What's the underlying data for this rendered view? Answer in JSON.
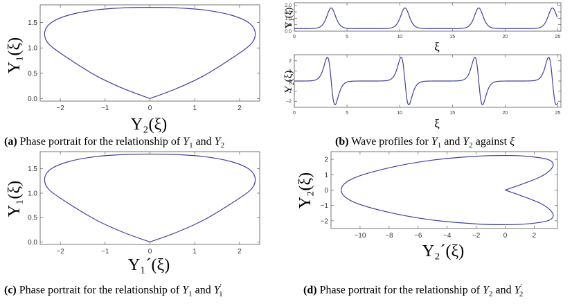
{
  "chart_data": [
    {
      "id": "a",
      "type": "line",
      "title": "",
      "xlabel": "Y₂(ξ)",
      "ylabel": "Y₁(ξ)",
      "xlim": [
        -2.45,
        2.45
      ],
      "ylim": [
        -0.05,
        1.85
      ],
      "xticks": [
        -2,
        -1,
        0,
        1,
        2
      ],
      "yticks": [
        0.0,
        0.5,
        1.0,
        1.5
      ],
      "xtick_labels": [
        "−2",
        "−1",
        "0",
        "1",
        "2"
      ],
      "ytick_labels": [
        "0.0",
        "0.5",
        "1.0",
        "1.5"
      ],
      "series": [
        {
          "name": "phase portrait",
          "color": "#3f3f9e",
          "x": [
            0.0,
            0.6,
            1.2,
            1.8,
            2.25,
            2.35,
            2.2,
            1.8,
            1.2,
            0.6,
            0.0,
            -0.6,
            -1.2,
            -1.8,
            -2.2,
            -2.35,
            -2.25,
            -1.8,
            -1.2,
            -0.6,
            0.0
          ],
          "y": [
            0.0,
            0.2,
            0.45,
            0.78,
            1.07,
            1.3,
            1.5,
            1.65,
            1.75,
            1.79,
            1.8,
            1.79,
            1.75,
            1.65,
            1.5,
            1.3,
            1.07,
            0.78,
            0.45,
            0.2,
            0.0
          ]
        }
      ],
      "caption": {
        "label": "(a)",
        "text": "Phase portrait for the relationship of",
        "var1": "Y",
        "sub1": "1",
        "conj": "and",
        "var2": "Y",
        "sub2": "2",
        "prime2": ""
      }
    },
    {
      "id": "b1",
      "type": "line",
      "title": "",
      "xlabel": "ξ",
      "ylabel": "Y₁(ξ)",
      "xlim": [
        0,
        25.3
      ],
      "ylim": [
        0,
        2.2
      ],
      "xticks": [
        0,
        5,
        10,
        15,
        20,
        25
      ],
      "yticks": [
        0.0,
        0.5,
        1.0,
        1.5,
        2.0
      ],
      "xtick_labels": [
        "0",
        "5",
        "10",
        "15",
        "20",
        "25"
      ],
      "ytick_labels": [
        "0.0",
        "0.5",
        "1.0",
        "1.5",
        "2.0"
      ],
      "series": [
        {
          "name": "wave profile Y1",
          "color": "#3f3f9e",
          "baseline": 0.2,
          "peak_height": 1.6,
          "peak_width": 0.55,
          "peaks": [
            3.5,
            10.5,
            17.5,
            24.5
          ]
        }
      ]
    },
    {
      "id": "b2",
      "type": "line",
      "title": "",
      "xlabel": "ξ",
      "ylabel": "Y₂(ξ)",
      "xlim": [
        0,
        25.3
      ],
      "ylim": [
        -2.6,
        2.6
      ],
      "xticks": [
        0,
        5,
        10,
        15,
        20,
        25
      ],
      "yticks": [
        -2,
        -1,
        0,
        1,
        2
      ],
      "xtick_labels": [
        "0",
        "5",
        "10",
        "15",
        "20",
        "25"
      ],
      "ytick_labels": [
        "−2",
        "−1",
        "0",
        "1",
        "2"
      ],
      "series": [
        {
          "name": "wave profile Y2",
          "color": "#3f3f9e",
          "amplitude": 2.35,
          "width": 0.55,
          "centers": [
            3.5,
            10.5,
            17.5,
            24.5
          ]
        }
      ],
      "caption": {
        "label": "(b)",
        "text": "Wave profiles for",
        "var1": "Y",
        "sub1": "1",
        "conj": "and",
        "var2": "Y",
        "sub2": "2",
        "tail": "against",
        "tailvar": "ξ"
      }
    },
    {
      "id": "c",
      "type": "line",
      "title": "",
      "xlabel": "Y₁´(ξ)",
      "ylabel": "Y₁(ξ)",
      "xlim": [
        -2.45,
        2.45
      ],
      "ylim": [
        -0.05,
        1.85
      ],
      "xticks": [
        -2,
        -1,
        0,
        1,
        2
      ],
      "yticks": [
        0.0,
        0.5,
        1.0,
        1.5
      ],
      "xtick_labels": [
        "−2",
        "−1",
        "0",
        "1",
        "2"
      ],
      "ytick_labels": [
        "0.0",
        "0.5",
        "1.0",
        "1.5"
      ],
      "series": [
        {
          "name": "phase portrait",
          "color": "#3f3f9e",
          "x": [
            0.0,
            0.6,
            1.2,
            1.8,
            2.25,
            2.35,
            2.2,
            1.8,
            1.2,
            0.6,
            0.0,
            -0.6,
            -1.2,
            -1.8,
            -2.2,
            -2.35,
            -2.25,
            -1.8,
            -1.2,
            -0.6,
            0.0
          ],
          "y": [
            0.0,
            0.2,
            0.45,
            0.78,
            1.07,
            1.3,
            1.5,
            1.65,
            1.75,
            1.79,
            1.8,
            1.79,
            1.75,
            1.65,
            1.5,
            1.3,
            1.07,
            0.78,
            0.45,
            0.2,
            0.0
          ]
        }
      ],
      "caption": {
        "label": "(c)",
        "text": "Phase portrait for the relationship of",
        "var1": "Y",
        "sub1": "1",
        "conj": "and",
        "var2": "Y",
        "sub2": "1",
        "prime2": "′"
      }
    },
    {
      "id": "d",
      "type": "line",
      "title": "",
      "xlabel": "Y₂´(ξ)",
      "ylabel": "Y₂(ξ)",
      "xlim": [
        -12.0,
        3.6
      ],
      "ylim": [
        -2.5,
        2.5
      ],
      "xticks": [
        -10,
        -8,
        -6,
        -4,
        -2,
        0,
        2
      ],
      "yticks": [
        -2,
        -1,
        0,
        1,
        2
      ],
      "xtick_labels": [
        "−10",
        "−8",
        "−6",
        "−4",
        "−2",
        "0",
        "2"
      ],
      "ytick_labels": [
        "−2",
        "−1",
        "0",
        "1",
        "2"
      ],
      "series": [
        {
          "name": "phase portrait",
          "color": "#3f3f9e",
          "x": [
            0.0,
            1.2,
            2.4,
            3.1,
            3.3,
            2.9,
            1.5,
            0.0,
            -2.0,
            -5.0,
            -8.0,
            -10.5,
            -11.3,
            -10.5,
            -8.0,
            -5.0,
            -2.0,
            0.0,
            1.5,
            2.9,
            3.3,
            3.1,
            2.4,
            1.2,
            0.0
          ],
          "y": [
            0.0,
            0.4,
            0.85,
            1.3,
            1.7,
            2.0,
            2.2,
            2.25,
            2.2,
            1.95,
            1.45,
            0.75,
            0.0,
            -0.75,
            -1.45,
            -1.95,
            -2.2,
            -2.25,
            -2.2,
            -2.0,
            -1.7,
            -1.3,
            -0.85,
            -0.4,
            0.0
          ]
        }
      ],
      "caption": {
        "label": "(d)",
        "text": "Phase portrait for the relationship of",
        "var1": "Y",
        "sub1": "2",
        "conj": "and",
        "var2": "Y",
        "sub2": "2",
        "prime2": "′"
      }
    }
  ]
}
